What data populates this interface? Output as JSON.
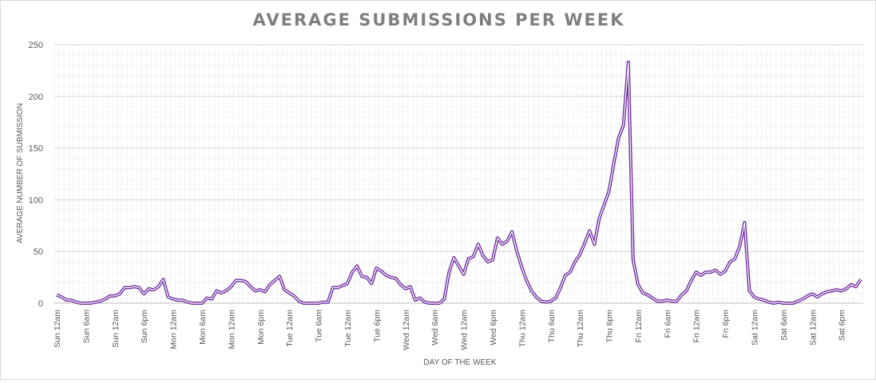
{
  "chart_data": {
    "type": "line",
    "title": "AVERAGE SUBMISSIONS PER WEEK",
    "xlabel": "DAY OF THE WEEK",
    "ylabel": "AVERAGE NUMBER OF SUBMISSION",
    "ylim": [
      0,
      250
    ],
    "yticks": [
      0,
      50,
      100,
      150,
      200,
      250
    ],
    "grid": true,
    "legend": "none",
    "x_tick_labels": [
      "Sun 12am",
      "Sun 6am",
      "Sun 12am",
      "Sun 6pm",
      "Mon 12am",
      "Mon 6am",
      "Mon 12am",
      "Mon 6pm",
      "Tue 12am",
      "Tue 6am",
      "Tue 12am",
      "Tue 6pm",
      "Wed 12am",
      "Wed 6am",
      "Wed 12am",
      "Wed 6pm",
      "Thu 12am",
      "Thu 6am",
      "Thu 12am",
      "Thu 6pm",
      "Fri 12am",
      "Fri 6am",
      "Fri 12am",
      "Fri 6pm",
      "Sat 12am",
      "Sat 6am",
      "Sat 12am",
      "Sat 6pm"
    ],
    "series": [
      {
        "color": "#7030a0",
        "values": [
          8,
          6,
          3,
          3,
          1,
          0,
          0,
          0,
          1,
          2,
          4,
          7,
          7,
          9,
          15,
          15,
          16,
          15,
          9,
          14,
          13,
          16,
          23,
          6,
          4,
          3,
          3,
          1,
          0,
          0,
          0,
          5,
          4,
          12,
          10,
          12,
          16,
          22,
          22,
          21,
          16,
          12,
          13,
          11,
          18,
          22,
          26,
          13,
          10,
          7,
          2,
          0,
          0,
          0,
          0,
          1,
          1,
          15,
          15,
          17,
          19,
          30,
          36,
          26,
          25,
          19,
          34,
          31,
          27,
          25,
          24,
          18,
          14,
          16,
          3,
          5,
          1,
          0,
          0,
          0,
          4,
          30,
          44,
          36,
          28,
          43,
          45,
          57,
          46,
          40,
          42,
          63,
          57,
          60,
          69,
          50,
          35,
          22,
          12,
          6,
          2,
          1,
          2,
          5,
          15,
          27,
          30,
          40,
          47,
          58,
          70,
          57,
          82,
          95,
          108,
          135,
          160,
          172,
          233,
          42,
          18,
          10,
          8,
          5,
          2,
          2,
          3,
          2,
          2,
          8,
          12,
          22,
          30,
          27,
          30,
          30,
          32,
          28,
          31,
          40,
          43,
          55,
          78,
          12,
          6,
          4,
          3,
          1,
          0,
          1,
          0,
          0,
          0,
          2,
          4,
          7,
          9,
          6,
          9,
          11,
          12,
          13,
          12,
          14,
          18,
          16,
          23
        ]
      }
    ]
  }
}
